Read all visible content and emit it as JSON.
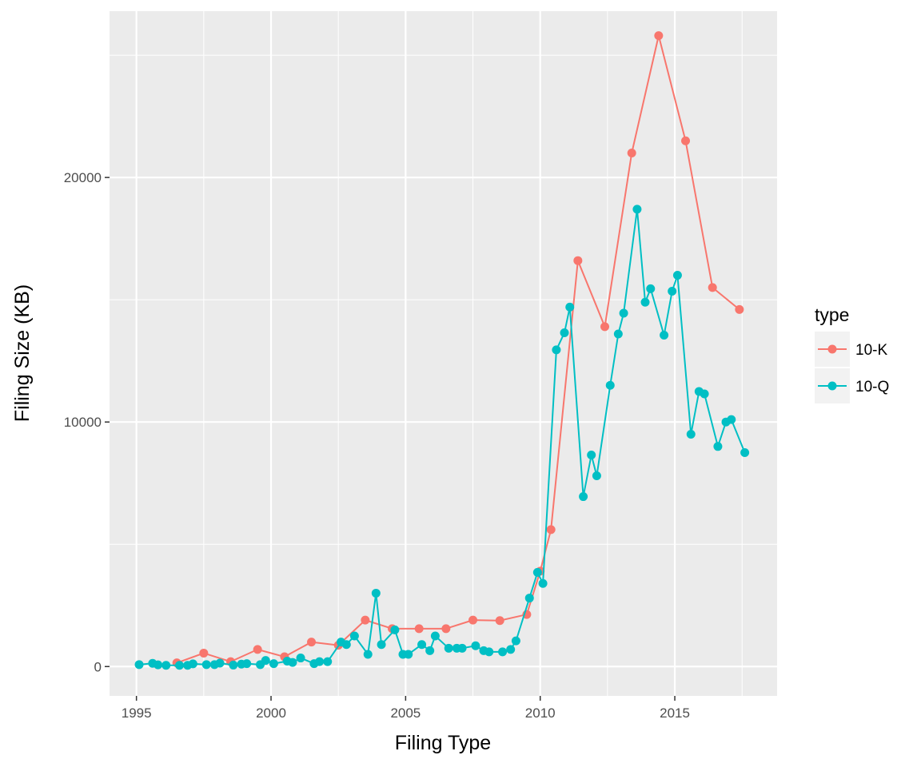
{
  "chart_data": {
    "type": "line",
    "title": "",
    "xlabel": "Filing Type",
    "ylabel": "Filing Size (KB)",
    "xlim": [
      1994.0,
      2018.8
    ],
    "ylim": [
      -1200,
      26800
    ],
    "x_ticks": [
      "1995",
      "2000",
      "2005",
      "2010",
      "2015"
    ],
    "y_ticks": [
      "0",
      "10000",
      "20000"
    ],
    "grid": true,
    "panel_background": "#ebebeb",
    "legend": {
      "title": "type",
      "position": "right"
    },
    "series": [
      {
        "name": "10-K",
        "color": "#f8766d",
        "x": [
          1996.5,
          1997.5,
          1998.5,
          1999.5,
          2000.5,
          2001.5,
          2002.5,
          2003.5,
          2004.5,
          2005.5,
          2006.5,
          2007.5,
          2008.5,
          2009.5,
          2010.0,
          2010.4,
          2011.4,
          2012.4,
          2013.4,
          2014.4,
          2015.4,
          2016.4,
          2017.4
        ],
        "y": [
          150,
          550,
          200,
          700,
          400,
          1000,
          870,
          1900,
          1550,
          1550,
          1550,
          1900,
          1880,
          2130,
          3900,
          5600,
          16600,
          13900,
          21000,
          25800,
          21500,
          15500,
          14600
        ]
      },
      {
        "name": "10-Q",
        "color": "#00bfc4",
        "x": [
          1995.1,
          1995.6,
          1995.8,
          1996.1,
          1996.6,
          1996.9,
          1997.1,
          1997.6,
          1997.9,
          1998.1,
          1998.6,
          1998.9,
          1999.1,
          1999.6,
          1999.8,
          2000.1,
          2000.6,
          2000.8,
          2001.1,
          2001.6,
          2001.8,
          2002.1,
          2002.6,
          2002.8,
          2003.1,
          2003.6,
          2003.9,
          2004.1,
          2004.6,
          2004.9,
          2005.1,
          2005.6,
          2005.9,
          2006.1,
          2006.6,
          2006.9,
          2007.1,
          2007.6,
          2007.9,
          2008.1,
          2008.6,
          2008.9,
          2009.1,
          2009.6,
          2009.9,
          2010.1,
          2010.6,
          2010.9,
          2011.1,
          2011.6,
          2011.9,
          2012.1,
          2012.6,
          2012.9,
          2013.1,
          2013.6,
          2013.9,
          2014.1,
          2014.6,
          2014.9,
          2015.1,
          2015.6,
          2015.9,
          2016.1,
          2016.6,
          2016.9,
          2017.1,
          2017.6
        ],
        "y": [
          80,
          130,
          70,
          50,
          50,
          50,
          110,
          80,
          80,
          140,
          60,
          100,
          120,
          80,
          250,
          120,
          220,
          170,
          350,
          120,
          200,
          200,
          1000,
          900,
          1250,
          500,
          3000,
          900,
          1500,
          500,
          500,
          900,
          650,
          1250,
          750,
          750,
          750,
          850,
          650,
          600,
          600,
          700,
          1050,
          2800,
          3850,
          3400,
          12950,
          13650,
          14700,
          6950,
          8650,
          7800,
          11500,
          13600,
          14450,
          18700,
          14900,
          15450,
          13550,
          15350,
          16000,
          9500,
          11250,
          11150,
          9000,
          10000,
          10100,
          8750
        ]
      }
    ]
  }
}
